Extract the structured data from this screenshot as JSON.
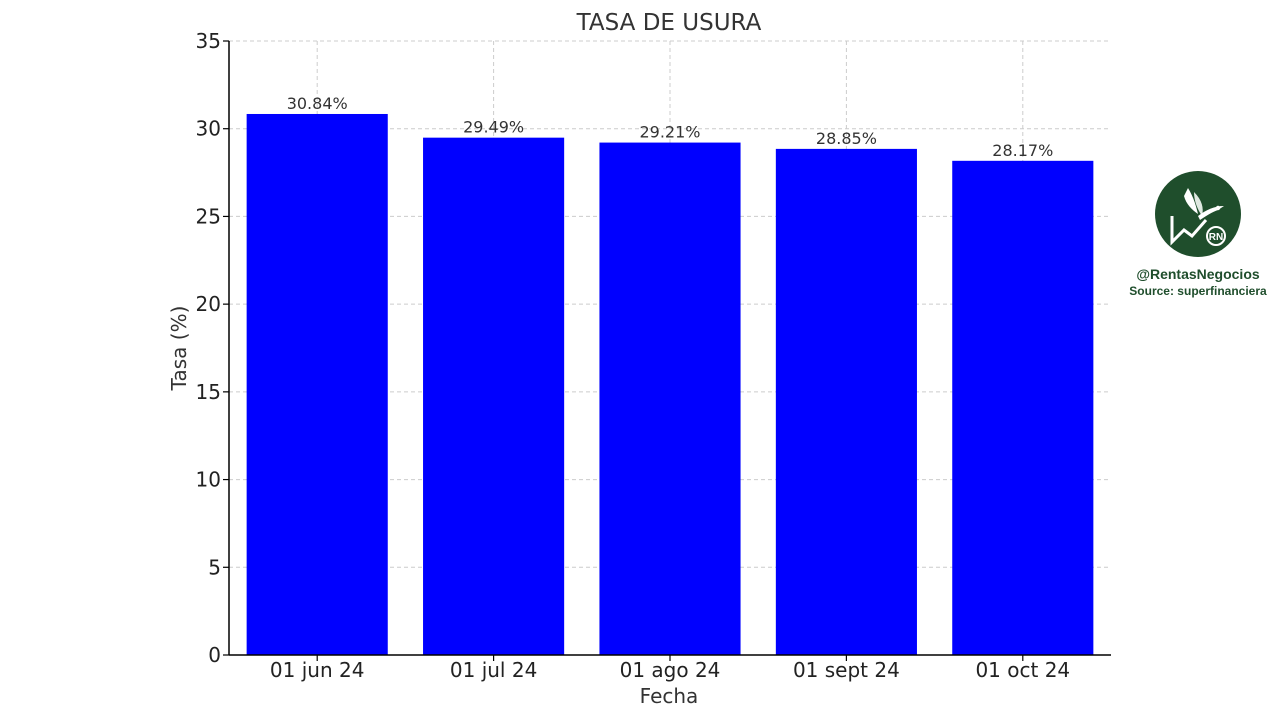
{
  "chart_data": {
    "type": "bar",
    "title": "TASA DE USURA",
    "xlabel": "Fecha",
    "ylabel": "Tasa (%)",
    "categories": [
      "01 jun 24",
      "01 jul 24",
      "01 ago 24",
      "01 sept 24",
      "01 oct 24"
    ],
    "values": [
      30.84,
      29.49,
      29.21,
      28.85,
      28.17
    ],
    "data_labels": [
      "30.84%",
      "29.49%",
      "29.21%",
      "28.85%",
      "28.17%"
    ],
    "ylim": [
      0,
      35
    ],
    "yticks": [
      0,
      5,
      10,
      15,
      20,
      25,
      30,
      35
    ],
    "grid": true,
    "bar_color": "#0000ff"
  },
  "brand": {
    "handle": "@RentasNegocios",
    "source": "Source: superfinanciera",
    "logo_text": "RN",
    "logo_icon": "hummingbird-logo",
    "logo_color": "#1f4e2c"
  }
}
